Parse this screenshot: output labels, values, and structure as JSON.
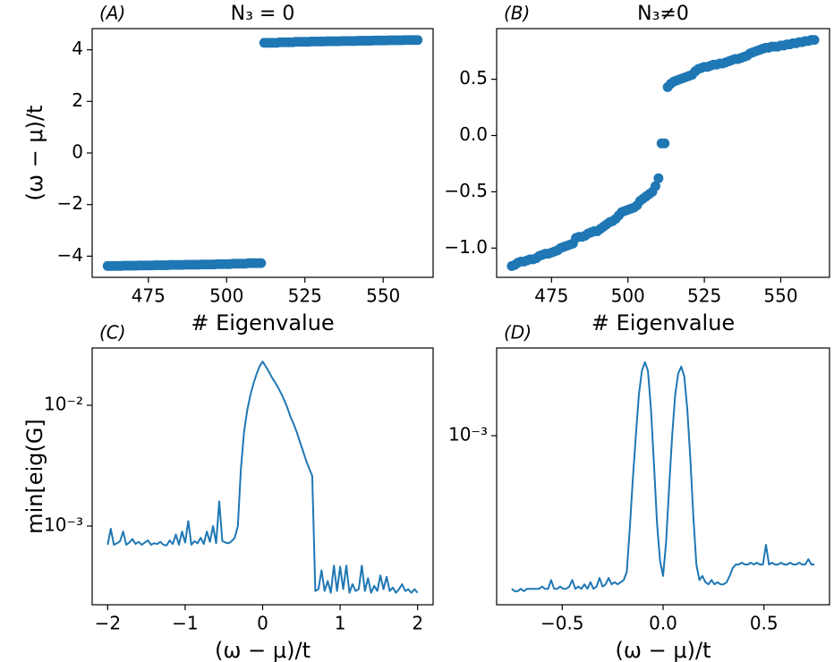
{
  "chart_data": [
    {
      "type": "scatter",
      "panel_label": "(A)",
      "title": "N₃ = 0",
      "xlabel": "# Eigenvalue",
      "ylabel": "(ω − μ)/t",
      "color": "#1f77b4",
      "x": [
        462,
        463,
        464,
        465,
        466,
        467,
        468,
        469,
        470,
        471,
        472,
        473,
        474,
        475,
        476,
        477,
        478,
        479,
        480,
        481,
        482,
        483,
        484,
        485,
        486,
        487,
        488,
        489,
        490,
        491,
        492,
        493,
        494,
        495,
        496,
        497,
        498,
        499,
        500,
        501,
        502,
        503,
        504,
        505,
        506,
        507,
        508,
        509,
        510,
        511,
        512,
        513,
        514,
        515,
        516,
        517,
        518,
        519,
        520,
        521,
        522,
        523,
        524,
        525,
        526,
        527,
        528,
        529,
        530,
        531,
        532,
        533,
        534,
        535,
        536,
        537,
        538,
        539,
        540,
        541,
        542,
        543,
        544,
        545,
        546,
        547,
        548,
        549,
        550,
        551,
        552,
        553,
        554,
        555,
        556,
        557,
        558,
        559,
        560,
        561
      ],
      "values": [
        -4.38,
        -4.38,
        -4.38,
        -4.38,
        -4.38,
        -4.37,
        -4.37,
        -4.37,
        -4.37,
        -4.37,
        -4.36,
        -4.36,
        -4.36,
        -4.36,
        -4.36,
        -4.35,
        -4.35,
        -4.35,
        -4.35,
        -4.35,
        -4.34,
        -4.34,
        -4.34,
        -4.34,
        -4.34,
        -4.33,
        -4.33,
        -4.33,
        -4.33,
        -4.33,
        -4.32,
        -4.32,
        -4.32,
        -4.32,
        -4.32,
        -4.31,
        -4.31,
        -4.31,
        -4.31,
        -4.31,
        -4.29,
        -4.29,
        -4.29,
        -4.29,
        -4.29,
        -4.27,
        -4.27,
        -4.27,
        -4.27,
        -4.27,
        4.27,
        4.27,
        4.27,
        4.27,
        4.27,
        4.29,
        4.29,
        4.29,
        4.29,
        4.29,
        4.31,
        4.31,
        4.31,
        4.31,
        4.31,
        4.32,
        4.32,
        4.32,
        4.32,
        4.32,
        4.33,
        4.33,
        4.33,
        4.33,
        4.33,
        4.34,
        4.34,
        4.34,
        4.34,
        4.34,
        4.35,
        4.35,
        4.35,
        4.35,
        4.35,
        4.36,
        4.36,
        4.36,
        4.36,
        4.36,
        4.37,
        4.37,
        4.37,
        4.37,
        4.37,
        4.38,
        4.38,
        4.38,
        4.38,
        4.38
      ],
      "xlim": [
        457.05,
        565.95
      ],
      "ylim": [
        -4.82,
        4.82
      ],
      "xticks": [
        475,
        500,
        525,
        550
      ],
      "yticks": [
        {
          "value": -4,
          "label": "−4"
        },
        {
          "value": -2,
          "label": "−2"
        },
        0,
        2,
        4
      ]
    },
    {
      "type": "scatter",
      "panel_label": "(B)",
      "title": "N₃≠0",
      "xlabel": "# Eigenvalue",
      "color": "#1f77b4",
      "x": [
        462,
        463,
        464,
        465,
        466,
        467,
        468,
        469,
        470,
        471,
        472,
        473,
        474,
        475,
        476,
        477,
        478,
        479,
        480,
        481,
        482,
        483,
        484,
        485,
        486,
        487,
        488,
        489,
        490,
        491,
        492,
        493,
        494,
        495,
        496,
        497,
        498,
        499,
        500,
        501,
        502,
        503,
        504,
        505,
        506,
        507,
        508,
        509,
        510,
        511,
        512,
        513,
        514,
        515,
        516,
        517,
        518,
        519,
        520,
        521,
        522,
        523,
        524,
        525,
        526,
        527,
        528,
        529,
        530,
        531,
        532,
        533,
        534,
        535,
        536,
        537,
        538,
        539,
        540,
        541,
        542,
        543,
        544,
        545,
        546,
        547,
        548,
        549,
        550,
        551,
        552,
        553,
        554,
        555,
        556,
        557,
        558,
        559,
        560,
        561
      ],
      "values": [
        -1.16,
        -1.15,
        -1.13,
        -1.12,
        -1.12,
        -1.11,
        -1.1,
        -1.1,
        -1.09,
        -1.07,
        -1.06,
        -1.05,
        -1.05,
        -1.04,
        -1.03,
        -1.02,
        -1.0,
        -0.99,
        -0.98,
        -0.97,
        -0.96,
        -0.91,
        -0.9,
        -0.9,
        -0.89,
        -0.87,
        -0.86,
        -0.85,
        -0.85,
        -0.83,
        -0.81,
        -0.79,
        -0.77,
        -0.76,
        -0.74,
        -0.71,
        -0.68,
        -0.67,
        -0.66,
        -0.65,
        -0.64,
        -0.62,
        -0.58,
        -0.56,
        -0.54,
        -0.52,
        -0.5,
        -0.45,
        -0.38,
        -0.07,
        -0.07,
        0.43,
        0.46,
        0.48,
        0.49,
        0.5,
        0.51,
        0.52,
        0.53,
        0.54,
        0.57,
        0.59,
        0.6,
        0.61,
        0.61,
        0.62,
        0.63,
        0.63,
        0.64,
        0.64,
        0.65,
        0.66,
        0.67,
        0.68,
        0.68,
        0.69,
        0.7,
        0.71,
        0.73,
        0.74,
        0.75,
        0.76,
        0.77,
        0.78,
        0.78,
        0.79,
        0.79,
        0.79,
        0.8,
        0.8,
        0.81,
        0.81,
        0.82,
        0.82,
        0.83,
        0.83,
        0.84,
        0.84,
        0.85,
        0.85
      ],
      "xlim": [
        457.05,
        565.95
      ],
      "ylim": [
        -1.26,
        0.95
      ],
      "xticks": [
        475,
        500,
        525,
        550
      ],
      "yticks": [
        {
          "value": -1.0,
          "label": "−1.0"
        },
        {
          "value": -0.5,
          "label": "−0.5"
        },
        {
          "value": 0,
          "label": "0.0"
        },
        0.5
      ]
    },
    {
      "type": "line",
      "panel_label": "(C)",
      "xlabel": "(ω − μ)/t",
      "ylabel": "min[eig(G]",
      "color": "#1f77b4",
      "yscale": "log",
      "x": [
        -2,
        -1.96,
        -1.92,
        -1.88,
        -1.84,
        -1.8,
        -1.76,
        -1.72,
        -1.68,
        -1.64,
        -1.6,
        -1.56,
        -1.52,
        -1.48,
        -1.44,
        -1.4,
        -1.36,
        -1.32,
        -1.28,
        -1.24,
        -1.2,
        -1.16,
        -1.12,
        -1.08,
        -1.04,
        -1,
        -0.96,
        -0.92,
        -0.88,
        -0.84,
        -0.8,
        -0.76,
        -0.72,
        -0.68,
        -0.64,
        -0.6,
        -0.56,
        -0.52,
        -0.48,
        -0.44,
        -0.4,
        -0.36,
        -0.32,
        -0.28,
        -0.24,
        -0.2,
        -0.16,
        -0.12,
        -0.08,
        -0.04,
        0,
        0.04,
        0.08,
        0.12,
        0.16,
        0.2,
        0.24,
        0.28,
        0.32,
        0.36,
        0.4,
        0.44,
        0.48,
        0.52,
        0.56,
        0.6,
        0.64,
        0.68,
        0.72,
        0.76,
        0.8,
        0.84,
        0.88,
        0.92,
        0.96,
        1,
        1.04,
        1.08,
        1.12,
        1.16,
        1.2,
        1.24,
        1.28,
        1.32,
        1.36,
        1.4,
        1.44,
        1.48,
        1.52,
        1.56,
        1.6,
        1.64,
        1.68,
        1.72,
        1.76,
        1.8,
        1.84,
        1.88,
        1.92,
        1.96,
        2
      ],
      "values": [
        0.0007,
        0.00095,
        0.0007,
        0.00072,
        0.00075,
        0.0009,
        0.0007,
        0.00073,
        0.00078,
        0.00071,
        0.00074,
        0.0007,
        0.00073,
        0.00076,
        0.0007,
        0.00072,
        0.00071,
        0.00074,
        0.0007,
        0.00069,
        0.00076,
        0.00071,
        0.00085,
        0.0007,
        0.0009,
        0.00073,
        0.0011,
        0.0007,
        0.00075,
        0.00072,
        0.0008,
        0.00071,
        0.0009,
        0.00074,
        0.001,
        0.00072,
        0.0016,
        0.00075,
        0.00073,
        0.00072,
        0.00075,
        0.0008,
        0.001,
        0.003,
        0.006,
        0.009,
        0.012,
        0.015,
        0.018,
        0.021,
        0.023,
        0.021,
        0.019,
        0.017,
        0.0155,
        0.014,
        0.0125,
        0.011,
        0.0095,
        0.008,
        0.007,
        0.006,
        0.005,
        0.0042,
        0.0035,
        0.003,
        0.0026,
        0.00029,
        0.0003,
        0.00043,
        0.00029,
        0.00035,
        0.00028,
        0.00047,
        0.00029,
        0.00046,
        0.0003,
        0.00047,
        0.00028,
        0.00033,
        0.00029,
        0.0003,
        0.00047,
        0.00029,
        0.00037,
        0.00028,
        0.00032,
        0.00029,
        0.00039,
        0.0003,
        0.00038,
        0.00029,
        0.00031,
        0.00028,
        0.0003,
        0.00033,
        0.00029,
        0.0003,
        0.00028,
        0.0003,
        0.00028
      ],
      "xlim": [
        -2.2,
        2.2
      ],
      "ylim": [
        0.000223,
        0.0298
      ],
      "xticks": [
        {
          "value": -2,
          "label": "−2"
        },
        {
          "value": -1,
          "label": "−1"
        },
        0,
        1,
        2
      ],
      "yticks": [
        {
          "value": 0.001,
          "label": "10⁻³"
        },
        {
          "value": 0.01,
          "label": "10⁻²"
        }
      ]
    },
    {
      "type": "line",
      "panel_label": "(D)",
      "xlabel": "(ω − μ)/t",
      "color": "#1f77b4",
      "yscale": "log",
      "x": [
        -0.75,
        -0.735,
        -0.72,
        -0.705,
        -0.69,
        -0.675,
        -0.66,
        -0.645,
        -0.63,
        -0.615,
        -0.6,
        -0.585,
        -0.57,
        -0.555,
        -0.54,
        -0.525,
        -0.51,
        -0.495,
        -0.48,
        -0.465,
        -0.45,
        -0.435,
        -0.42,
        -0.405,
        -0.39,
        -0.375,
        -0.36,
        -0.345,
        -0.33,
        -0.315,
        -0.3,
        -0.285,
        -0.27,
        -0.255,
        -0.24,
        -0.225,
        -0.21,
        -0.195,
        -0.18,
        -0.165,
        -0.15,
        -0.135,
        -0.12,
        -0.105,
        -0.09,
        -0.075,
        -0.06,
        -0.045,
        -0.03,
        -0.015,
        0,
        0.015,
        0.03,
        0.045,
        0.06,
        0.075,
        0.09,
        0.105,
        0.12,
        0.135,
        0.15,
        0.165,
        0.18,
        0.195,
        0.21,
        0.225,
        0.24,
        0.255,
        0.27,
        0.285,
        0.3,
        0.315,
        0.33,
        0.345,
        0.36,
        0.375,
        0.39,
        0.405,
        0.42,
        0.435,
        0.45,
        0.465,
        0.48,
        0.495,
        0.51,
        0.525,
        0.54,
        0.555,
        0.57,
        0.585,
        0.6,
        0.615,
        0.63,
        0.645,
        0.66,
        0.675,
        0.69,
        0.705,
        0.72,
        0.735,
        0.75
      ],
      "values": [
        0.00022,
        0.000215,
        0.000215,
        0.00022,
        0.000215,
        0.00022,
        0.00022,
        0.00022,
        0.00022,
        0.00022,
        0.000225,
        0.00022,
        0.00022,
        0.00024,
        0.00022,
        0.00022,
        0.000225,
        0.00022,
        0.00022,
        0.000225,
        0.00024,
        0.00022,
        0.000225,
        0.00022,
        0.00023,
        0.00022,
        0.000235,
        0.00022,
        0.000225,
        0.000245,
        0.000225,
        0.00023,
        0.000245,
        0.00023,
        0.000235,
        0.00023,
        0.000235,
        0.00024,
        0.00026,
        0.0004,
        0.00065,
        0.001,
        0.0015,
        0.0019,
        0.00207,
        0.0019,
        0.0013,
        0.00075,
        0.00042,
        0.00029,
        0.00025,
        0.00035,
        0.0006,
        0.001,
        0.0015,
        0.00185,
        0.00198,
        0.0018,
        0.0013,
        0.0008,
        0.00045,
        0.00028,
        0.00024,
        0.00025,
        0.000235,
        0.00023,
        0.00024,
        0.00023,
        0.000235,
        0.00023,
        0.00023,
        0.000235,
        0.00025,
        0.00027,
        0.00028,
        0.00028,
        0.000285,
        0.00028,
        0.00028,
        0.000285,
        0.00028,
        0.000285,
        0.00028,
        0.00028,
        0.00034,
        0.00028,
        0.000285,
        0.00028,
        0.00028,
        0.000285,
        0.00028,
        0.00028,
        0.000285,
        0.00028,
        0.00028,
        0.000285,
        0.00028,
        0.00028,
        0.000295,
        0.00028,
        0.00028
      ],
      "xlim": [
        -0.825,
        0.825
      ],
      "ylim": [
        0.000188,
        0.00238
      ],
      "xticks": [
        {
          "value": -0.5,
          "label": "−0.5"
        },
        {
          "value": 0,
          "label": "0.0"
        },
        0.5
      ],
      "yticks": [
        {
          "value": 0.001,
          "label": "10⁻³"
        }
      ]
    }
  ]
}
